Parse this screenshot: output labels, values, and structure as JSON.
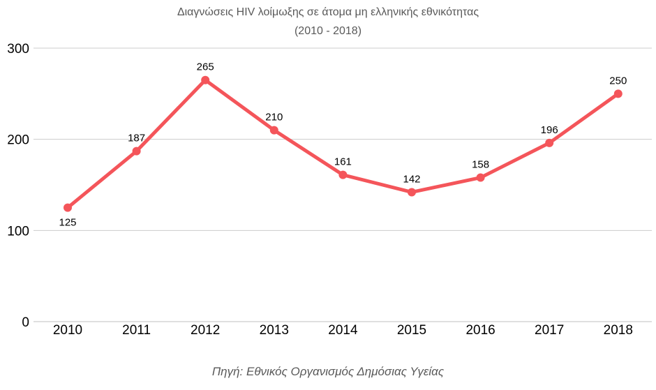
{
  "chart_data": {
    "type": "line",
    "title": "Διαγνώσεις HIV λοίμωξης σε άτομα μη ελληνικής εθνικότητας",
    "subtitle": "(2010 - 2018)",
    "categories": [
      "2010",
      "2011",
      "2012",
      "2013",
      "2014",
      "2015",
      "2016",
      "2017",
      "2018"
    ],
    "series": [
      {
        "values": [
          125,
          187,
          265,
          210,
          161,
          142,
          158,
          196,
          250
        ],
        "color": "#f4555a"
      }
    ],
    "ylim": [
      0,
      300
    ],
    "yticks": [
      "0",
      "100",
      "200",
      "300"
    ],
    "grid": true,
    "data_labels": true
  },
  "source": "Πηγή: Εθνικός Οργανισμός Δημόσιας Υγείας"
}
